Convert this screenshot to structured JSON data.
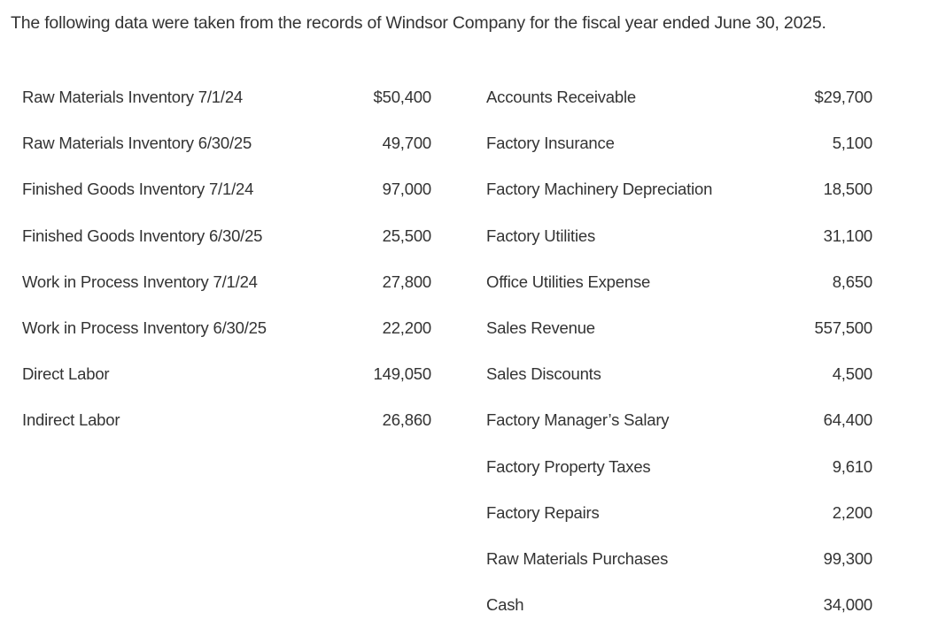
{
  "intro": "The following data were taken from the records of Windsor Company for the fiscal year ended June 30, 2025.",
  "left_items": [
    {
      "label": "Raw Materials Inventory 7/1/24",
      "amount": "$50,400"
    },
    {
      "label": "Raw Materials Inventory 6/30/25",
      "amount": "49,700"
    },
    {
      "label": "Finished Goods Inventory 7/1/24",
      "amount": "97,000"
    },
    {
      "label": "Finished Goods Inventory 6/30/25",
      "amount": "25,500"
    },
    {
      "label": "Work in Process Inventory 7/1/24",
      "amount": "27,800"
    },
    {
      "label": "Work in Process Inventory 6/30/25",
      "amount": "22,200"
    },
    {
      "label": "Direct Labor",
      "amount": "149,050"
    },
    {
      "label": "Indirect Labor",
      "amount": "26,860"
    }
  ],
  "right_items": [
    {
      "label": "Accounts Receivable",
      "amount": "$29,700"
    },
    {
      "label": "Factory Insurance",
      "amount": "5,100"
    },
    {
      "label": "Factory Machinery Depreciation",
      "amount": "18,500"
    },
    {
      "label": "Factory Utilities",
      "amount": "31,100"
    },
    {
      "label": "Office Utilities Expense",
      "amount": "8,650"
    },
    {
      "label": "Sales Revenue",
      "amount": "557,500"
    },
    {
      "label": "Sales Discounts",
      "amount": "4,500"
    },
    {
      "label": "Factory Manager’s Salary",
      "amount": "64,400"
    },
    {
      "label": "Factory Property Taxes",
      "amount": "9,610"
    },
    {
      "label": "Factory Repairs",
      "amount": "2,200"
    },
    {
      "label": "Raw Materials Purchases",
      "amount": "99,300"
    },
    {
      "label": "Cash",
      "amount": "34,000"
    }
  ]
}
